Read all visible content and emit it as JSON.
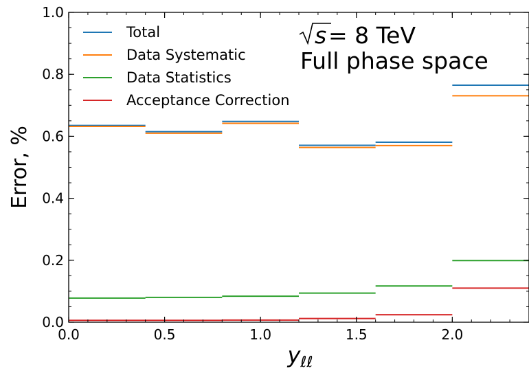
{
  "chart_data": {
    "type": "line",
    "step": true,
    "x_edges": [
      0.0,
      0.4,
      0.8,
      1.2,
      1.6,
      2.0,
      2.4
    ],
    "xlim": [
      0.0,
      2.4
    ],
    "ylim": [
      0.0,
      1.0
    ],
    "xlabel_base": "y",
    "xlabel_sub": "ℓℓ",
    "ylabel": "Error, %",
    "x_ticks": [
      {
        "value": 0.0,
        "label": "0.0"
      },
      {
        "value": 0.5,
        "label": "0.5"
      },
      {
        "value": 1.0,
        "label": "1.0"
      },
      {
        "value": 1.5,
        "label": "1.5"
      },
      {
        "value": 2.0,
        "label": "2.0"
      }
    ],
    "y_ticks": [
      {
        "value": 0.0,
        "label": "0.0"
      },
      {
        "value": 0.2,
        "label": "0.2"
      },
      {
        "value": 0.4,
        "label": "0.4"
      },
      {
        "value": 0.6,
        "label": "0.6"
      },
      {
        "value": 0.8,
        "label": "0.8"
      },
      {
        "value": 1.0,
        "label": "1.0"
      }
    ],
    "x_minor_step": 0.1,
    "y_minor_step": 0.05,
    "grid": false,
    "legend_position": "top-left",
    "annotation": {
      "sqrt_text": "s",
      "rest_text": " = 8 TeV",
      "line2": "Full phase space"
    },
    "series": [
      {
        "name": "Total",
        "color": "#1f77b4",
        "values": [
          0.635,
          0.615,
          0.648,
          0.571,
          0.581,
          0.765
        ]
      },
      {
        "name": "Data Systematic",
        "color": "#ff7f0e",
        "values": [
          0.632,
          0.61,
          0.642,
          0.564,
          0.57,
          0.731
        ]
      },
      {
        "name": "Data Statistics",
        "color": "#2ca02c",
        "values": [
          0.078,
          0.08,
          0.084,
          0.094,
          0.117,
          0.199
        ]
      },
      {
        "name": "Acceptance Correction",
        "color": "#d62728",
        "values": [
          0.006,
          0.006,
          0.007,
          0.012,
          0.024,
          0.11
        ]
      }
    ]
  }
}
